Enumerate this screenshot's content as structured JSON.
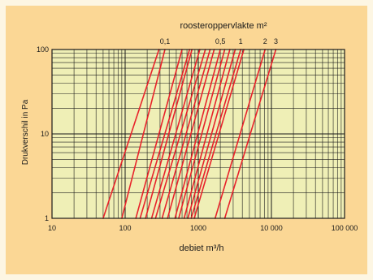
{
  "chart_data": {
    "type": "line",
    "title": "roosteroppervlakte m²",
    "xlabel": "debiet m³/h",
    "ylabel": "Drukverschil in Pa",
    "x_scale": "log",
    "y_scale": "log",
    "xlim": [
      10,
      100000
    ],
    "ylim": [
      1,
      100
    ],
    "x_ticks": [
      {
        "value": 10,
        "label": "10"
      },
      {
        "value": 100,
        "label": "100"
      },
      {
        "value": 1000,
        "label": "1000"
      },
      {
        "value": 10000,
        "label": "10 000"
      },
      {
        "value": 100000,
        "label": "100 000"
      }
    ],
    "y_ticks": [
      {
        "value": 1,
        "label": "1"
      },
      {
        "value": 10,
        "label": "10"
      },
      {
        "value": 100,
        "label": "100"
      }
    ],
    "grid": true,
    "top_labels": [
      {
        "label": "0,1",
        "x_at_top": 350
      },
      {
        "label": "0,5",
        "x_at_top": 2000
      },
      {
        "label": "1",
        "x_at_top": 3800
      },
      {
        "label": "2",
        "x_at_top": 8200
      },
      {
        "label": "3",
        "x_at_top": 11500
      }
    ],
    "series": [
      {
        "x": [
          50,
          290
        ]
      },
      {
        "x": [
          90,
          350
        ]
      },
      {
        "x": [
          140,
          600
        ]
      },
      {
        "x": [
          160,
          760
        ]
      },
      {
        "x": [
          190,
          820
        ]
      },
      {
        "x": [
          230,
          1050
        ]
      },
      {
        "x": [
          260,
          1250
        ]
      },
      {
        "x": [
          320,
          1450
        ]
      },
      {
        "x": [
          380,
          1650
        ]
      },
      {
        "x": [
          480,
          2000
        ]
      },
      {
        "x": [
          540,
          2300
        ]
      },
      {
        "x": [
          640,
          2700
        ]
      },
      {
        "x": [
          720,
          3200
        ]
      },
      {
        "x": [
          800,
          3800
        ]
      },
      {
        "x": [
          880,
          4200
        ]
      },
      {
        "x": [
          1700,
          8200
        ]
      },
      {
        "x": [
          2300,
          11500
        ]
      }
    ],
    "series_y": [
      1,
      100
    ],
    "colors": {
      "line": "#e8232b",
      "plot_bg": "#efefb6",
      "panel_bg": "#fbd795",
      "border": "#fdf6e3",
      "grid": "#1a1a1a"
    }
  }
}
